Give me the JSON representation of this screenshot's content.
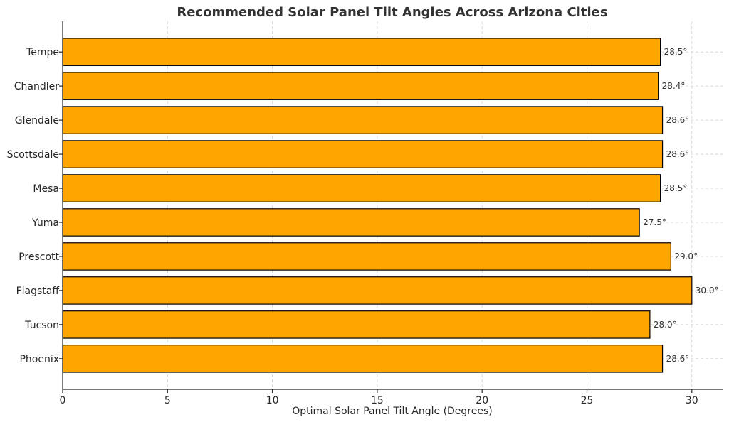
{
  "chart_data": {
    "type": "bar",
    "orientation": "horizontal",
    "title": "Recommended Solar Panel Tilt Angles Across Arizona Cities",
    "xlabel": "Optimal Solar Panel Tilt Angle (Degrees)",
    "ylabel": "",
    "categories": [
      "Phoenix",
      "Tucson",
      "Flagstaff",
      "Prescott",
      "Yuma",
      "Mesa",
      "Scottsdale",
      "Glendale",
      "Chandler",
      "Tempe"
    ],
    "values": [
      28.6,
      28.0,
      30.0,
      29.0,
      27.5,
      28.5,
      28.6,
      28.6,
      28.4,
      28.5
    ],
    "data_labels": [
      "28.6°",
      "28.0°",
      "30.0°",
      "29.0°",
      "27.5°",
      "28.5°",
      "28.6°",
      "28.6°",
      "28.4°",
      "28.5°"
    ],
    "xlim": [
      0,
      31.5
    ],
    "xticks": [
      0,
      5,
      10,
      15,
      20,
      25,
      30
    ],
    "grid": true,
    "bar_color": "#FFA500",
    "bar_edge_color": "#000000"
  }
}
